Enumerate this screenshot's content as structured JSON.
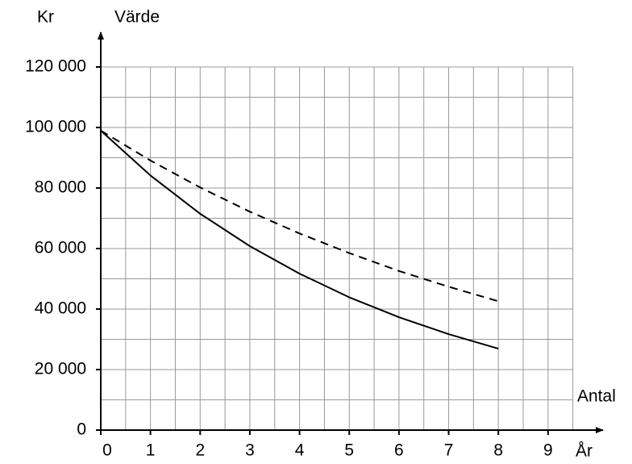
{
  "chart_data": {
    "type": "line",
    "y_label": "Kr",
    "title": "Värde",
    "x_label_top": "Antal",
    "x_label": "År",
    "x": [
      0,
      1,
      2,
      3,
      4,
      5,
      6,
      7,
      8
    ],
    "series": [
      {
        "color": "#000000",
        "dashed": false,
        "values": [
          99000,
          84150,
          71500,
          60800,
          51700,
          43900,
          37300,
          31700,
          26900
        ]
      },
      {
        "color": "#000000",
        "dashed": true,
        "values": [
          99000,
          89100,
          80200,
          72200,
          65000,
          58500,
          52600,
          47400,
          42600
        ]
      }
    ],
    "xlim": [
      0,
      9.5
    ],
    "ylim": [
      0,
      120000
    ],
    "xticks": [
      0,
      1,
      2,
      3,
      4,
      5,
      6,
      7,
      8,
      9
    ],
    "yticks": [
      0,
      {
        "value": 20000,
        "label": "20 000"
      },
      {
        "value": 40000,
        "label": "40 000"
      },
      {
        "value": 60000,
        "label": "60 000"
      },
      {
        "value": 80000,
        "label": "80 000"
      },
      {
        "value": 100000,
        "label": "100 000"
      },
      {
        "value": 120000,
        "label": "120 000"
      }
    ],
    "xminorticks": [
      0.5,
      1.5,
      2.5,
      3.5,
      4.5,
      5.5,
      6.5,
      7.5,
      8.5,
      9.5
    ],
    "yminorticks": [
      10000,
      30000,
      50000,
      70000,
      90000,
      110000
    ],
    "grid": true
  }
}
